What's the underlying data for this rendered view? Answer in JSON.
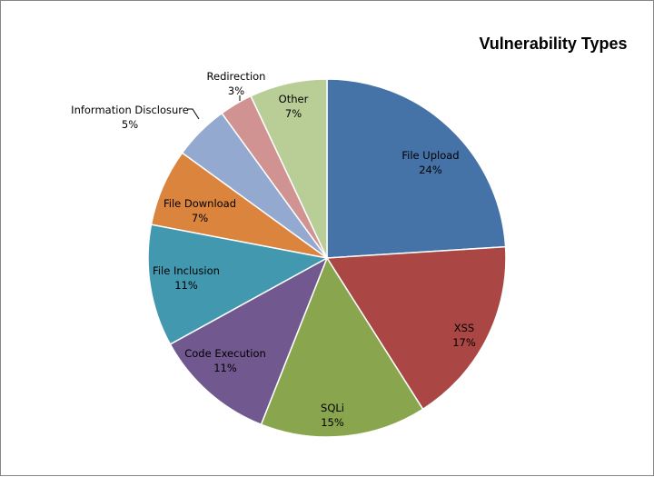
{
  "chart_data": {
    "type": "pie",
    "title": "Vulnerability Types",
    "slices": [
      {
        "label": "File Upload",
        "value": 24,
        "display": "24%",
        "color": "#4572A7"
      },
      {
        "label": "XSS",
        "value": 17,
        "display": "17%",
        "color": "#AA4643"
      },
      {
        "label": "SQLi",
        "value": 15,
        "display": "15%",
        "color": "#89A54E"
      },
      {
        "label": "Code Execution",
        "value": 11,
        "display": "11%",
        "color": "#71588F"
      },
      {
        "label": "File Inclusion",
        "value": 11,
        "display": "11%",
        "color": "#4198AF"
      },
      {
        "label": "File Download",
        "value": 7,
        "display": "7%",
        "color": "#DB843D"
      },
      {
        "label": "Information Disclosure",
        "value": 5,
        "display": "5%",
        "color": "#93A9CF"
      },
      {
        "label": "Redirection",
        "value": 3,
        "display": "3%",
        "color": "#D19392"
      },
      {
        "label": "Other",
        "value": 7,
        "display": "7%",
        "color": "#B9CD96"
      }
    ],
    "start_angle": "12 o'clock",
    "direction": "clockwise",
    "legend": "none",
    "label_content": "category name and percentage"
  }
}
